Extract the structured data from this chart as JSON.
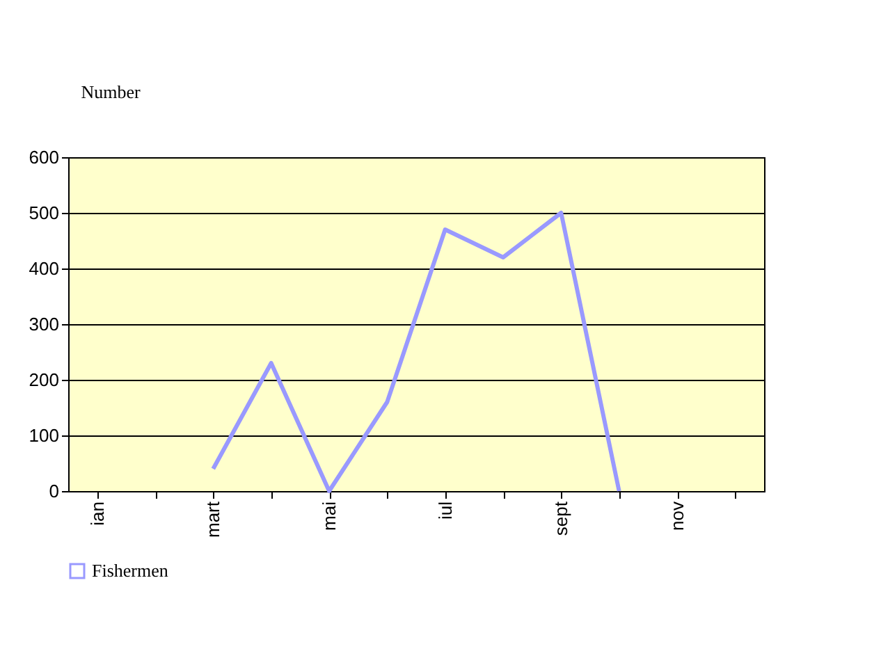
{
  "chart_data": {
    "type": "line",
    "ylabel": "Number",
    "categories": [
      "ian",
      null,
      "mart",
      null,
      "mai",
      null,
      "iul",
      null,
      "sept",
      null,
      "nov",
      null
    ],
    "series": [
      {
        "name": "Fishermen",
        "color": "#9999ff",
        "values": [
          null,
          null,
          40,
          230,
          0,
          160,
          470,
          420,
          500,
          0,
          null,
          null
        ]
      }
    ],
    "ylim": [
      0,
      600
    ],
    "yticks": [
      0,
      100,
      200,
      300,
      400,
      500,
      600
    ],
    "grid": "y",
    "legend": "bottom",
    "marker": "none",
    "line_style": "solid"
  }
}
